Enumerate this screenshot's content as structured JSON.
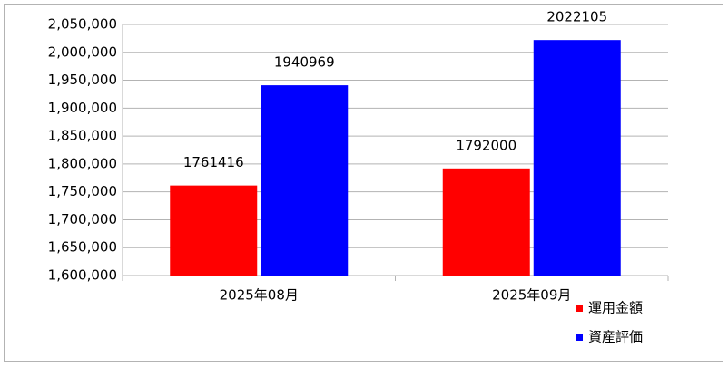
{
  "chart_data": {
    "type": "bar",
    "categories": [
      "2025年08月",
      "2025年09月"
    ],
    "series": [
      {
        "name": "運用金額",
        "color": "#ff0000",
        "values": [
          1761416,
          1792000
        ]
      },
      {
        "name": "資産評価",
        "color": "#0000ff",
        "values": [
          1940969,
          2022105
        ]
      }
    ],
    "ylim": [
      1600000,
      2050000
    ],
    "yticks": [
      {
        "value": 1600000,
        "label": "1,600,000"
      },
      {
        "value": 1650000,
        "label": "1,650,000"
      },
      {
        "value": 1700000,
        "label": "1,700,000"
      },
      {
        "value": 1750000,
        "label": "1,750,000"
      },
      {
        "value": 1800000,
        "label": "1,800,000"
      },
      {
        "value": 1850000,
        "label": "1,850,000"
      },
      {
        "value": 1900000,
        "label": "1,900,000"
      },
      {
        "value": 1950000,
        "label": "1,950,000"
      },
      {
        "value": 2000000,
        "label": "2,000,000"
      },
      {
        "value": 2050000,
        "label": "2,050,000"
      }
    ],
    "grid": true,
    "legend": "bottom-right"
  }
}
